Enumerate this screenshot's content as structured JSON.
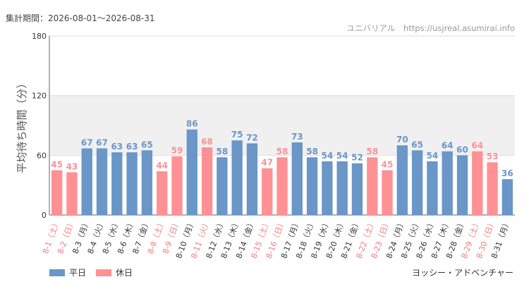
{
  "period_text": "集計期間：2026-08-01～2026-08-31",
  "source_text": "ユニバリアル　https://usjreal.asumirai.info",
  "attraction_name": "ヨッシー・アドベンチャー",
  "legend": {
    "weekday": "平日",
    "holiday": "休日"
  },
  "colors": {
    "weekday": "#6a96c8",
    "holiday": "#ff9195",
    "band": "#f0f0f0",
    "axis": "#666666",
    "grid": "#dddddd"
  },
  "chart_data": {
    "type": "bar",
    "ylabel": "平均待ち時間（分）",
    "ylim": [
      0,
      180
    ],
    "yticks": [
      0,
      60,
      120,
      180
    ],
    "band_range": [
      60,
      120
    ],
    "categories": [
      "8-1（土）",
      "8-2（日）",
      "8-3（月）",
      "8-4（火）",
      "8-5（水）",
      "8-6（木）",
      "8-7（金）",
      "8-8（土）",
      "8-9（日）",
      "8-10（月）",
      "8-11（火）",
      "8-12（水）",
      "8-13（木）",
      "8-14（金）",
      "8-15（土）",
      "8-16（日）",
      "8-17（月）",
      "8-18（火）",
      "8-19（水）",
      "8-20（木）",
      "8-21（金）",
      "8-22（土）",
      "8-23（日）",
      "8-24（月）",
      "8-25（火）",
      "8-26（水）",
      "8-27（木）",
      "8-28（金）",
      "8-29（土）",
      "8-30（日）",
      "8-31（月）"
    ],
    "values": [
      45,
      43,
      67,
      67,
      63,
      63,
      65,
      44,
      59,
      86,
      68,
      58,
      75,
      72,
      47,
      58,
      73,
      58,
      54,
      54,
      52,
      58,
      45,
      70,
      65,
      54,
      64,
      60,
      64,
      53,
      36
    ],
    "day_type": [
      "holiday",
      "holiday",
      "weekday",
      "weekday",
      "weekday",
      "weekday",
      "weekday",
      "holiday",
      "holiday",
      "weekday",
      "holiday",
      "weekday",
      "weekday",
      "weekday",
      "holiday",
      "holiday",
      "weekday",
      "weekday",
      "weekday",
      "weekday",
      "weekday",
      "holiday",
      "holiday",
      "weekday",
      "weekday",
      "weekday",
      "weekday",
      "weekday",
      "holiday",
      "holiday",
      "weekday"
    ],
    "series": [
      {
        "name": "平日"
      },
      {
        "name": "休日"
      }
    ]
  }
}
